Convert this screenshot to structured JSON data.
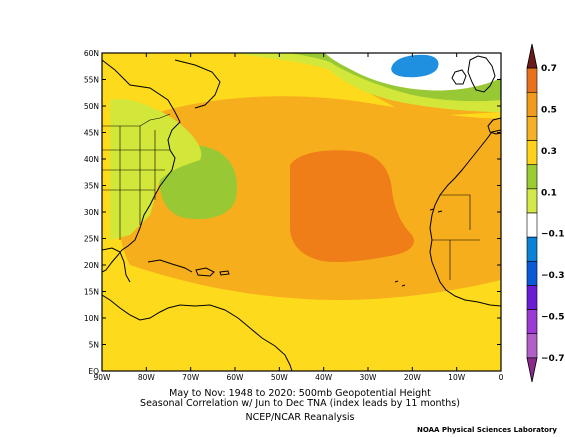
{
  "map": {
    "lat_labels": [
      "60N",
      "55N",
      "50N",
      "45N",
      "40N",
      "35N",
      "30N",
      "25N",
      "20N",
      "15N",
      "10N",
      "5N",
      "EQ"
    ],
    "lon_labels": [
      "90W",
      "80W",
      "70W",
      "60W",
      "50W",
      "40W",
      "30W",
      "20W",
      "10W",
      "0"
    ]
  },
  "colorbar": {
    "labels": [
      "0.7",
      "0.5",
      "0.3",
      "0.1",
      "−0.1",
      "−0.3",
      "−0.5",
      "−0.7"
    ],
    "colors": [
      "#6b1a1a",
      "#e8721c",
      "#f29a1c",
      "#f5b025",
      "#ffd31c",
      "#9bcc32",
      "#d4e84a",
      "#ffffff",
      "#0a82d8",
      "#0a5ad8",
      "#6b1dd6",
      "#9c3ad6",
      "#b25fc8",
      "#8a2a8a"
    ]
  },
  "field_colors": {
    "base": "#f6ae1c",
    "yellow": "#fddb1c",
    "light_green": "#d3e63a",
    "green": "#98c934",
    "orange": "#ef7d18",
    "blue": "#1f8fe0",
    "white": "#ffffff"
  },
  "caption": {
    "line1": "May to Nov: 1948 to 2020: 500mb Geopotential Height",
    "line2": "Seasonal Correlation w/ Jun to Dec TNA (index leads by 11 months)",
    "line3": "NCEP/NCAR Reanalysis"
  },
  "credit": "NOAA Physical Sciences Laboratory"
}
